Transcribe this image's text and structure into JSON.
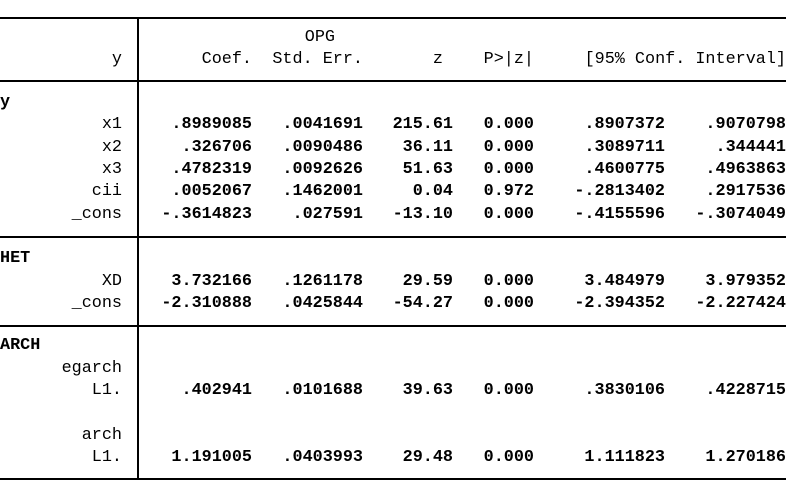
{
  "colors": {
    "background": "#ffffff",
    "text": "#000000",
    "rule": "#000000"
  },
  "table": {
    "header": {
      "group_label": "OPG",
      "depvar": "y",
      "coef": "Coef.",
      "stderr": "Std. Err.",
      "z": "z",
      "p": "P>|z|",
      "ci": "[95% Conf. Interval]"
    },
    "sections": [
      {
        "name": "y",
        "rows": [
          {
            "label": "x1",
            "coef": ".8989085",
            "se": ".0041691",
            "z": "215.61",
            "p": "0.000",
            "lo": ".8907372",
            "hi": ".9070798"
          },
          {
            "label": "x2",
            "coef": ".326706",
            "se": ".0090486",
            "z": "36.11",
            "p": "0.000",
            "lo": ".3089711",
            "hi": ".344441"
          },
          {
            "label": "x3",
            "coef": ".4782319",
            "se": ".0092626",
            "z": "51.63",
            "p": "0.000",
            "lo": ".4600775",
            "hi": ".4963863"
          },
          {
            "label": "cii",
            "coef": ".0052067",
            "se": ".1462001",
            "z": "0.04",
            "p": "0.972",
            "lo": "-.2813402",
            "hi": ".2917536"
          },
          {
            "label": "_cons",
            "coef": "-.3614823",
            "se": ".027591",
            "z": "-13.10",
            "p": "0.000",
            "lo": "-.4155596",
            "hi": "-.3074049"
          }
        ]
      },
      {
        "name": "HET",
        "rows": [
          {
            "label": "XD",
            "coef": "3.732166",
            "se": ".1261178",
            "z": "29.59",
            "p": "0.000",
            "lo": "3.484979",
            "hi": "3.979352"
          },
          {
            "label": "_cons",
            "coef": "-2.310888",
            "se": ".0425844",
            "z": "-54.27",
            "p": "0.000",
            "lo": "-2.394352",
            "hi": "-2.227424"
          }
        ]
      },
      {
        "name": "ARCH",
        "rows": [
          {
            "label": "egarch"
          },
          {
            "label": "L1.",
            "coef": ".402941",
            "se": ".0101688",
            "z": "39.63",
            "p": "0.000",
            "lo": ".3830106",
            "hi": ".4228715"
          },
          {
            "label": ""
          },
          {
            "label": "arch"
          },
          {
            "label": "L1.",
            "coef": "1.191005",
            "se": ".0403993",
            "z": "29.48",
            "p": "0.000",
            "lo": "1.111823",
            "hi": "1.270186"
          }
        ]
      }
    ]
  }
}
